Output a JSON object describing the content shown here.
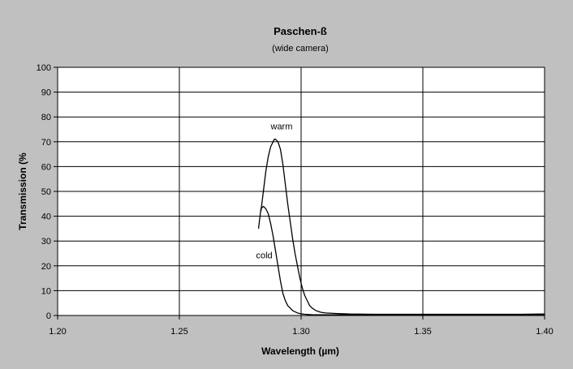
{
  "chart_data": {
    "type": "line",
    "title": "Paschen-ß",
    "subtitle": "(wide camera)",
    "xlabel": "Wavelength (µm)",
    "ylabel": "Transmission (%",
    "xlim": [
      1.2,
      1.4
    ],
    "ylim": [
      0,
      100
    ],
    "x_ticks": [
      "1.20",
      "1.25",
      "1.30",
      "1.35",
      "1.40"
    ],
    "y_ticks": [
      "0",
      "10",
      "20",
      "30",
      "40",
      "50",
      "60",
      "70",
      "80",
      "90",
      "100"
    ],
    "grid": true,
    "annotations": [
      {
        "text": "warm",
        "x": 1.2875,
        "y": 75
      },
      {
        "text": "cold",
        "x": 1.2815,
        "y": 23
      }
    ],
    "series": [
      {
        "name": "warm",
        "x": [
          1.2835,
          1.2845,
          1.2855,
          1.2865,
          1.2875,
          1.2885,
          1.289,
          1.2895,
          1.2905,
          1.2915,
          1.2925,
          1.2935,
          1.2945,
          1.2955,
          1.2965,
          1.2975,
          1.2985,
          1.2995,
          1.3005,
          1.3015,
          1.3025,
          1.3035,
          1.3045,
          1.306,
          1.308,
          1.31,
          1.315,
          1.32,
          1.33,
          1.34,
          1.35,
          1.36,
          1.37,
          1.38,
          1.39,
          1.4
        ],
        "y": [
          42,
          50,
          58,
          64,
          68,
          70,
          71,
          71,
          70,
          67,
          61,
          53,
          45,
          38,
          31,
          25,
          20,
          15,
          11,
          8,
          6,
          4,
          3,
          2,
          1.3,
          1,
          0.8,
          0.6,
          0.5,
          0.5,
          0.5,
          0.5,
          0.5,
          0.5,
          0.5,
          0.6
        ]
      },
      {
        "name": "cold",
        "x": [
          1.2825,
          1.2835,
          1.2845,
          1.2855,
          1.2865,
          1.2875,
          1.2885,
          1.2895,
          1.2905,
          1.2915,
          1.2925,
          1.2935,
          1.2945,
          1.2955,
          1.2965,
          1.2975,
          1.2985,
          1.2995,
          1.3005,
          1.3015,
          1.303,
          1.305,
          1.31,
          1.32,
          1.33,
          1.34,
          1.35,
          1.36,
          1.37,
          1.38,
          1.39,
          1.4
        ],
        "y": [
          35,
          43,
          44,
          43,
          41,
          37,
          32,
          26,
          20,
          14,
          9,
          6,
          4,
          3,
          2,
          1.5,
          1,
          0.8,
          0.6,
          0.5,
          0.4,
          0.3,
          0.3,
          0.3,
          0.3,
          0.3,
          0.3,
          0.3,
          0.3,
          0.3,
          0.3,
          0.4
        ]
      }
    ]
  }
}
